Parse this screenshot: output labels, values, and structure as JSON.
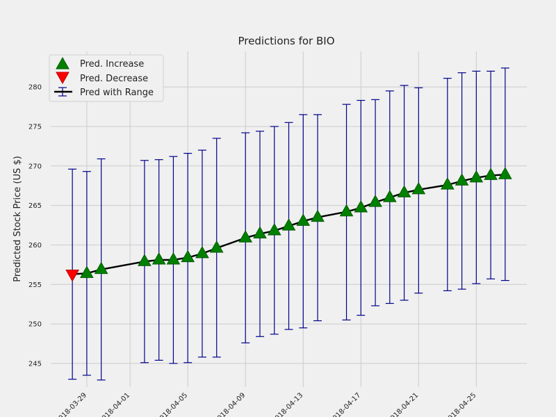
{
  "chart_data": {
    "type": "line",
    "title": "Predictions for BIO",
    "ylabel": "Predicted Stock Price (US $)",
    "xlabel": "",
    "ylim": [
      242.0,
      284.5
    ],
    "xlim": [
      "2018-03-26T12:00",
      "2018-04-28T12:00"
    ],
    "yticks": [
      245,
      250,
      255,
      260,
      265,
      270,
      275,
      280
    ],
    "xticks": [
      "2018-03-29",
      "2018-04-01",
      "2018-04-05",
      "2018-04-09",
      "2018-04-13",
      "2018-04-17",
      "2018-04-21",
      "2018-04-25"
    ],
    "grid": true,
    "legend": {
      "position": "top-left",
      "entries": [
        "Pred. Increase",
        "Pred. Decrease",
        "Pred with Range"
      ]
    },
    "colors": {
      "increase": "#008000",
      "decrease": "#ff0000",
      "range": "#00008b",
      "line": "#000000"
    },
    "series": [
      {
        "name": "Pred with Range",
        "points": [
          {
            "date": "2018-03-28",
            "value": 256.3,
            "lower": 243.0,
            "upper": 269.6,
            "direction": "decrease"
          },
          {
            "date": "2018-03-29",
            "value": 256.4,
            "lower": 243.5,
            "upper": 269.3,
            "direction": "increase"
          },
          {
            "date": "2018-03-30",
            "value": 256.9,
            "lower": 242.9,
            "upper": 270.9,
            "direction": "increase"
          },
          {
            "date": "2018-04-02",
            "value": 257.9,
            "lower": 245.1,
            "upper": 270.7,
            "direction": "increase"
          },
          {
            "date": "2018-04-03",
            "value": 258.1,
            "lower": 245.4,
            "upper": 270.8,
            "direction": "increase"
          },
          {
            "date": "2018-04-04",
            "value": 258.1,
            "lower": 245.0,
            "upper": 271.2,
            "direction": "increase"
          },
          {
            "date": "2018-04-05",
            "value": 258.4,
            "lower": 245.1,
            "upper": 271.6,
            "direction": "increase"
          },
          {
            "date": "2018-04-06",
            "value": 258.9,
            "lower": 245.8,
            "upper": 272.0,
            "direction": "increase"
          },
          {
            "date": "2018-04-07",
            "value": 259.6,
            "lower": 245.8,
            "upper": 273.5,
            "direction": "increase"
          },
          {
            "date": "2018-04-09",
            "value": 260.9,
            "lower": 247.6,
            "upper": 274.2,
            "direction": "increase"
          },
          {
            "date": "2018-04-10",
            "value": 261.4,
            "lower": 248.4,
            "upper": 274.4,
            "direction": "increase"
          },
          {
            "date": "2018-04-11",
            "value": 261.8,
            "lower": 248.7,
            "upper": 275.0,
            "direction": "increase"
          },
          {
            "date": "2018-04-12",
            "value": 262.4,
            "lower": 249.3,
            "upper": 275.5,
            "direction": "increase"
          },
          {
            "date": "2018-04-13",
            "value": 263.0,
            "lower": 249.5,
            "upper": 276.5,
            "direction": "increase"
          },
          {
            "date": "2018-04-14",
            "value": 263.5,
            "lower": 250.4,
            "upper": 276.5,
            "direction": "increase"
          },
          {
            "date": "2018-04-16",
            "value": 264.2,
            "lower": 250.5,
            "upper": 277.8,
            "direction": "increase"
          },
          {
            "date": "2018-04-17",
            "value": 264.7,
            "lower": 251.1,
            "upper": 278.3,
            "direction": "increase"
          },
          {
            "date": "2018-04-18",
            "value": 265.4,
            "lower": 252.3,
            "upper": 278.4,
            "direction": "increase"
          },
          {
            "date": "2018-04-19",
            "value": 266.0,
            "lower": 252.6,
            "upper": 279.5,
            "direction": "increase"
          },
          {
            "date": "2018-04-20",
            "value": 266.6,
            "lower": 253.0,
            "upper": 280.2,
            "direction": "increase"
          },
          {
            "date": "2018-04-21",
            "value": 267.0,
            "lower": 253.9,
            "upper": 279.9,
            "direction": "increase"
          },
          {
            "date": "2018-04-23",
            "value": 267.6,
            "lower": 254.2,
            "upper": 281.1,
            "direction": "increase"
          },
          {
            "date": "2018-04-24",
            "value": 268.1,
            "lower": 254.4,
            "upper": 281.8,
            "direction": "increase"
          },
          {
            "date": "2018-04-25",
            "value": 268.5,
            "lower": 255.1,
            "upper": 282.0,
            "direction": "increase"
          },
          {
            "date": "2018-04-26",
            "value": 268.8,
            "lower": 255.7,
            "upper": 282.0,
            "direction": "increase"
          },
          {
            "date": "2018-04-27",
            "value": 268.9,
            "lower": 255.5,
            "upper": 282.4,
            "direction": "increase"
          }
        ]
      }
    ]
  }
}
